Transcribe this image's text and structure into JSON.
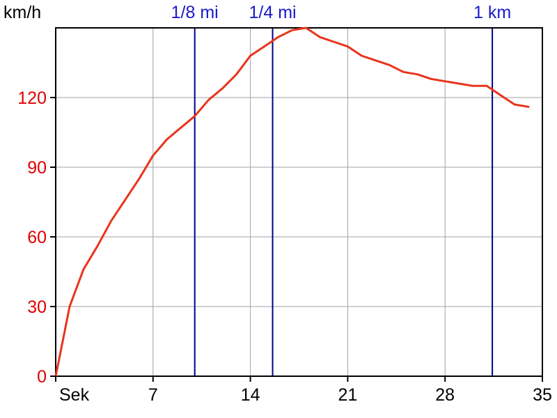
{
  "chart_data": {
    "type": "line",
    "title": "",
    "ylabel": "km/h",
    "xlabel": "Sek",
    "xlim": [
      0,
      35
    ],
    "ylim": [
      0,
      150
    ],
    "x_ticks": [
      0,
      7,
      14,
      21,
      28,
      35
    ],
    "x_tick_labels": [
      "Sek",
      "7",
      "14",
      "21",
      "28",
      "35"
    ],
    "y_ticks": [
      0,
      30,
      60,
      90,
      120
    ],
    "y_tick_labels": [
      "0",
      "30",
      "60",
      "90",
      "120"
    ],
    "grid": true,
    "colors": {
      "series": "#e8341c",
      "axis_text": "#e00000",
      "markers": "#00008b",
      "marker_text": "#1a1acc",
      "grid": "#a0a0a0",
      "frame": "#000000"
    },
    "series": [
      {
        "x": [
          0,
          1,
          2,
          3,
          4,
          5,
          6,
          7,
          8,
          9,
          10,
          11,
          12,
          13,
          14,
          15,
          16,
          17,
          18,
          19,
          20,
          21,
          22,
          23,
          24,
          25,
          26,
          27,
          28,
          29,
          30,
          31,
          32,
          33,
          34
        ],
        "y": [
          0,
          30,
          46,
          56,
          67,
          76,
          85,
          95,
          102,
          107,
          112,
          119,
          124,
          130,
          138,
          142,
          146,
          149,
          150,
          146,
          144,
          142,
          138,
          136,
          134,
          131,
          130,
          128,
          127,
          126,
          125,
          125,
          121,
          117,
          116
        ]
      }
    ],
    "markers": [
      {
        "label": "1/8 mi",
        "x": 10
      },
      {
        "label": "1/4 mi",
        "x": 15.6
      },
      {
        "label": "1 km",
        "x": 31.4
      }
    ]
  }
}
